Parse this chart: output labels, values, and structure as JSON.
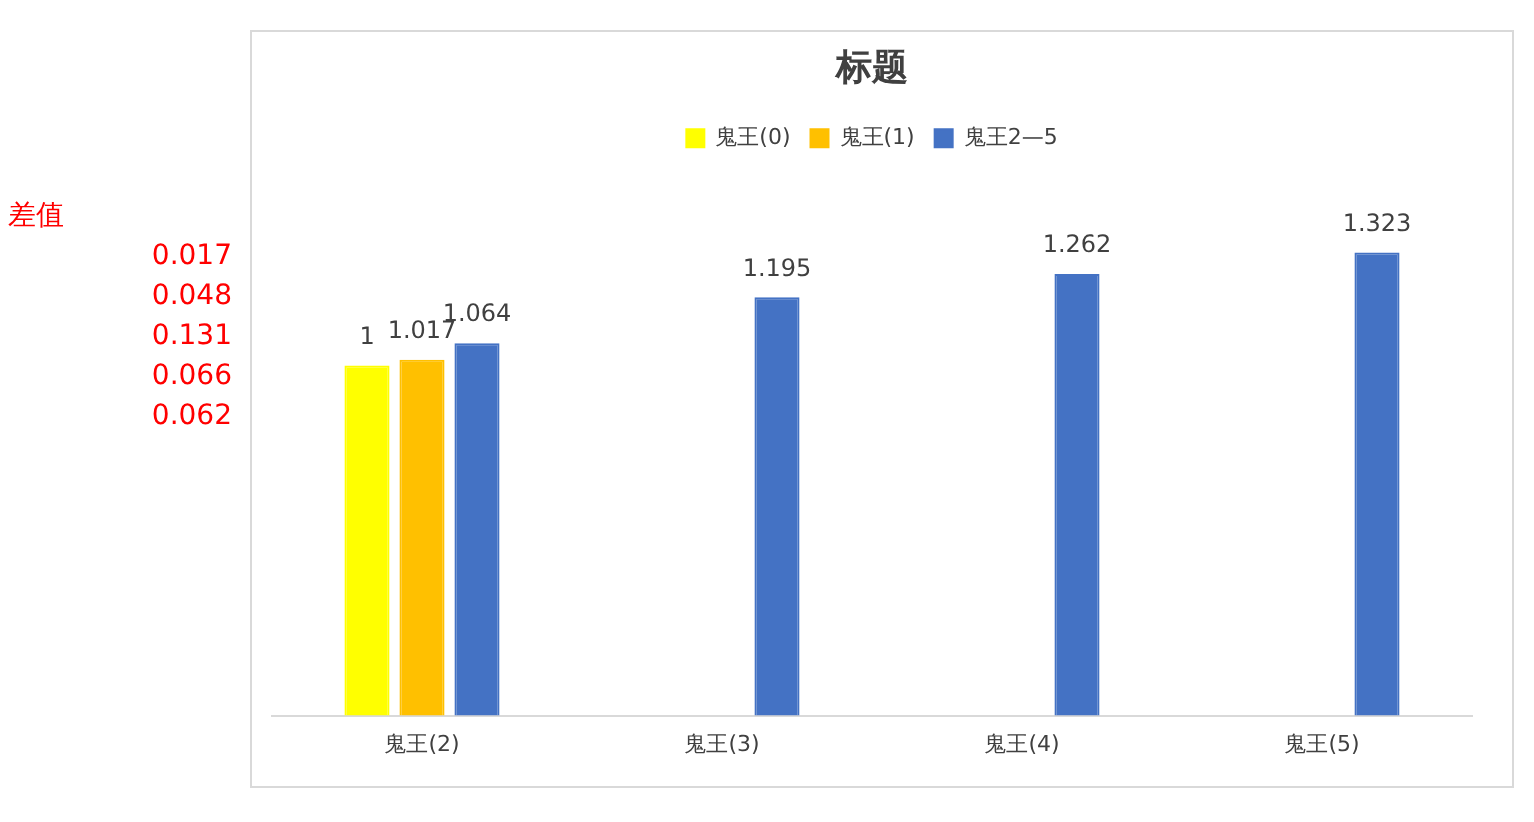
{
  "chart_data": {
    "type": "bar",
    "title": "标题",
    "categories": [
      "鬼王(2)",
      "鬼王(3)",
      "鬼王(4)",
      "鬼王(5)"
    ],
    "series": [
      {
        "name": "鬼王(0)",
        "color": "#ffff00",
        "values": [
          1,
          null,
          null,
          null
        ]
      },
      {
        "name": "鬼王(1)",
        "color": "#ffc000",
        "values": [
          1.017,
          null,
          null,
          null
        ]
      },
      {
        "name": "鬼王2—5",
        "color": "#4472c4",
        "values": [
          1.064,
          1.195,
          1.262,
          1.323
        ]
      }
    ],
    "data_labels": true,
    "legend": "top",
    "grid": false,
    "annotations": [
      "差值",
      "0.017",
      "0.048",
      "0.131",
      "0.066",
      "0.062"
    ]
  }
}
